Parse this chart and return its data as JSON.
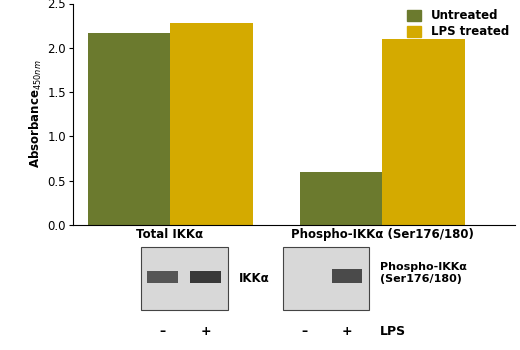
{
  "categories": [
    "Total IKKα",
    "Phospho-IKKα (Ser176/180)"
  ],
  "untreated_values": [
    2.17,
    0.6
  ],
  "lps_values": [
    2.28,
    2.1
  ],
  "untreated_color": "#6b7a2e",
  "lps_color": "#d4aa00",
  "ylabel": "Absorbance$_{450nm}$",
  "ylim": [
    0,
    2.5
  ],
  "yticks": [
    0,
    0.5,
    1.0,
    1.5,
    2.0,
    2.5
  ],
  "legend_untreated": "Untreated",
  "legend_lps": "LPS treated",
  "bar_width": 0.28,
  "wb_label1": "IKKα",
  "wb_label2": "Phospho-IKKα\n(Ser176/180)",
  "minus_plus": [
    "–",
    "+"
  ],
  "lps_text": "LPS",
  "background_color": "#ffffff"
}
